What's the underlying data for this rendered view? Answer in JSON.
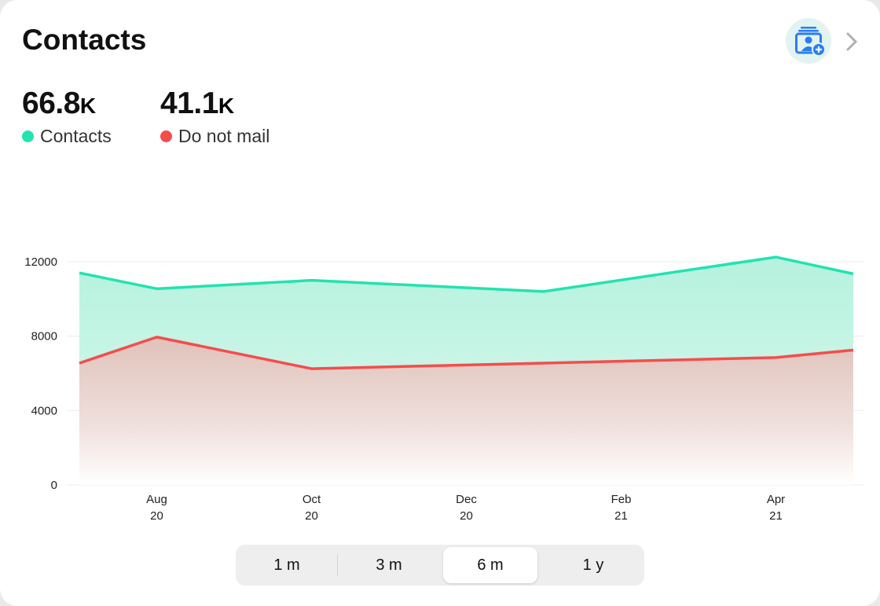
{
  "header": {
    "title": "Contacts",
    "add_button_icon": "add-contact-icon",
    "chevron_icon": "chevron-right-icon"
  },
  "stats": [
    {
      "value": "66.8",
      "unit": "K",
      "label": "Contacts",
      "color": "#22e3b0"
    },
    {
      "value": "41.1",
      "unit": "K",
      "label": "Do not mail",
      "color": "#f64c4c"
    }
  ],
  "chart_data": {
    "type": "area",
    "x": [
      "2020-07",
      "2020-08",
      "2020-10",
      "2021-01",
      "2021-04",
      "2021-05"
    ],
    "series": [
      {
        "name": "Contacts",
        "color": "#22e3b0",
        "values": [
          11400,
          10550,
          11000,
          10400,
          12250,
          11350
        ]
      },
      {
        "name": "Do not mail",
        "color": "#f64c4c",
        "values": [
          6550,
          7950,
          6250,
          6550,
          6850,
          7250
        ]
      }
    ],
    "ylim": [
      0,
      12000
    ],
    "yticks": [
      "0",
      "4000",
      "8000",
      "12000"
    ],
    "xticks": [
      {
        "month": "Aug",
        "year": "20",
        "date": "2020-08"
      },
      {
        "month": "Oct",
        "year": "20",
        "date": "2020-10"
      },
      {
        "month": "Dec",
        "year": "20",
        "date": "2020-12"
      },
      {
        "month": "Feb",
        "year": "21",
        "date": "2021-02"
      },
      {
        "month": "Apr",
        "year": "21",
        "date": "2021-04"
      }
    ],
    "grid": true
  },
  "range_selector": {
    "options": [
      "1 m",
      "3 m",
      "6 m",
      "1 y"
    ],
    "selected": "6 m"
  }
}
